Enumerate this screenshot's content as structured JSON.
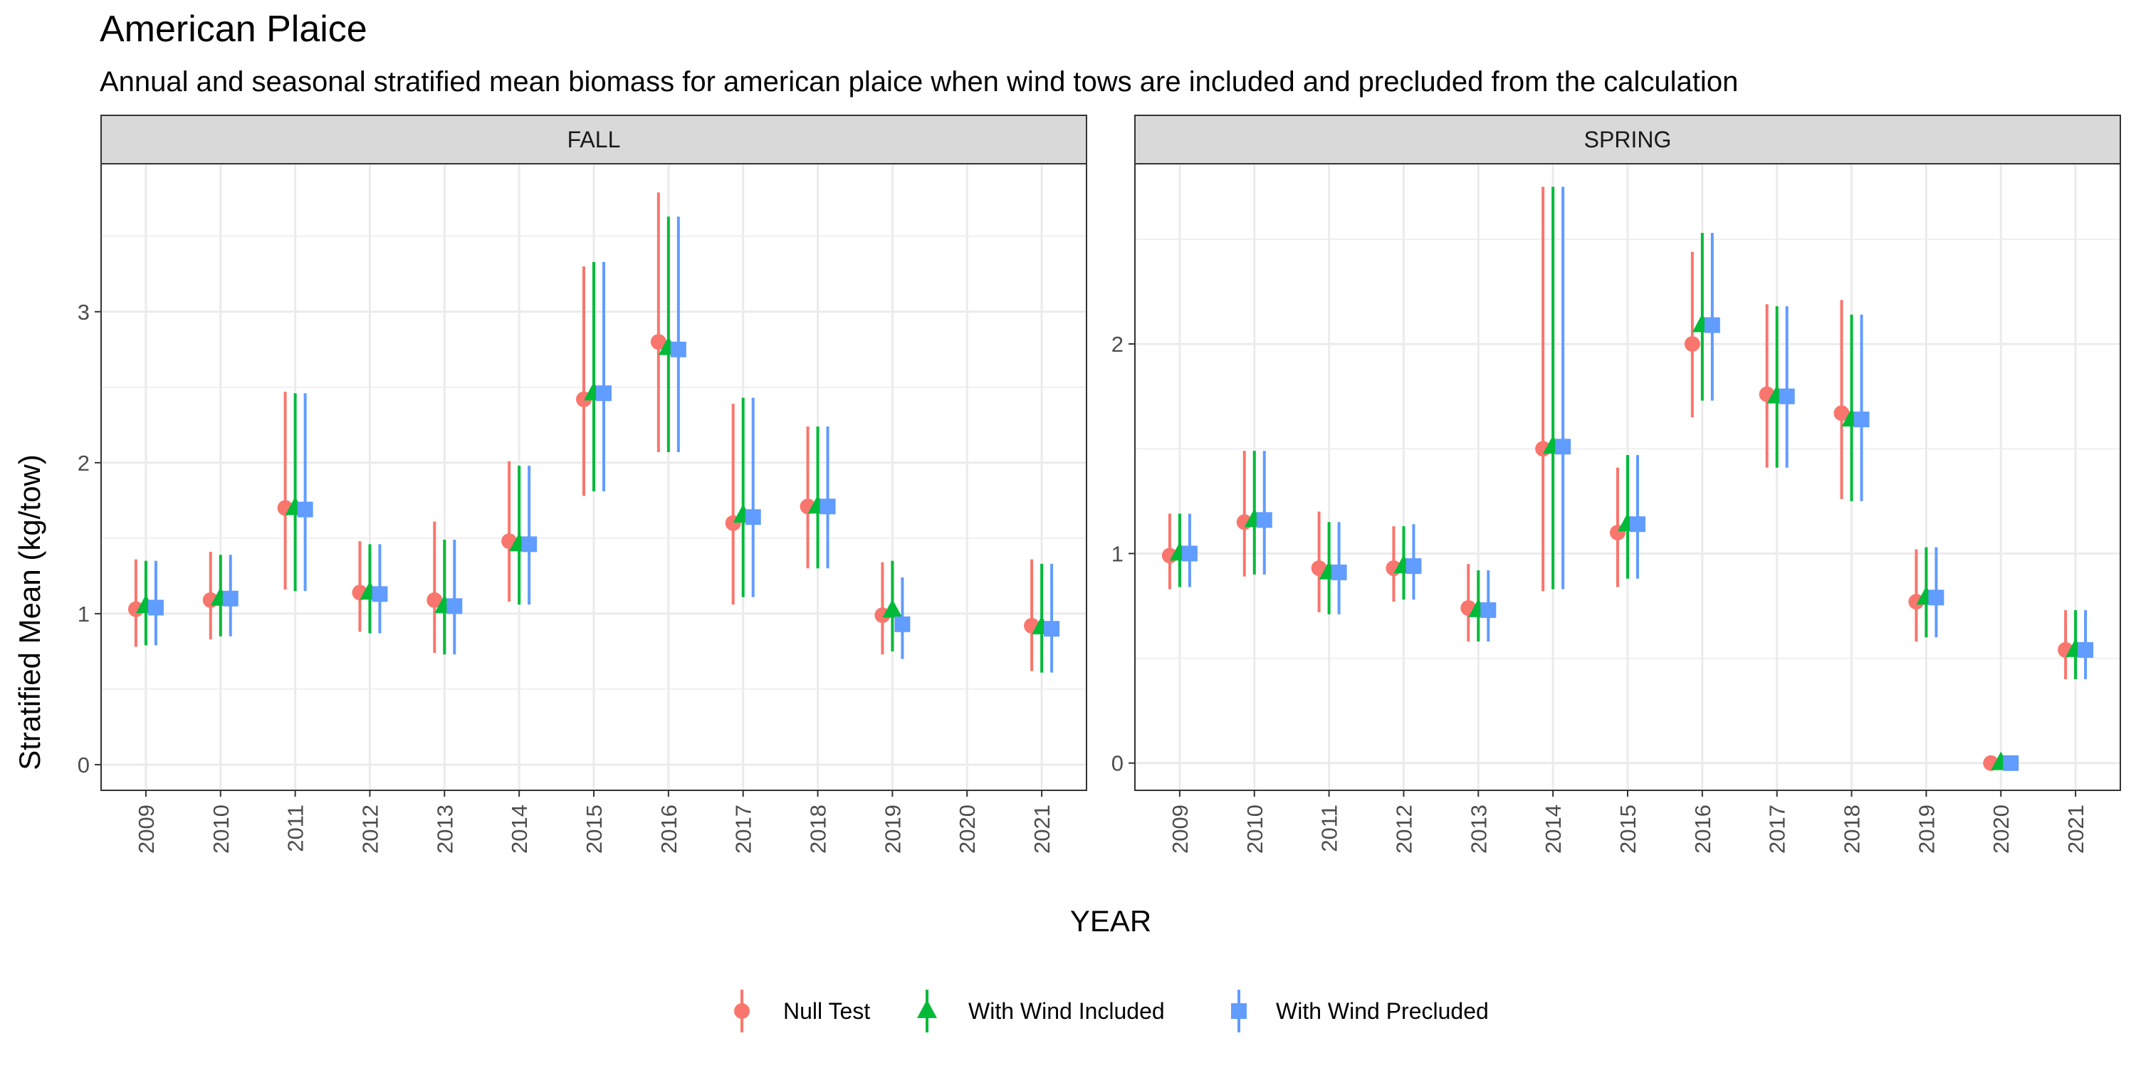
{
  "chart_data": {
    "type": "scatter",
    "title": "American Plaice",
    "subtitle": "Annual and seasonal stratified mean biomass for american plaice when wind tows are included and precluded from the calculation",
    "xlabel": "YEAR",
    "ylabel": "Stratified Mean (kg/tow)",
    "grid": true,
    "legend_position": "bottom",
    "x": [
      "2009",
      "2010",
      "2011",
      "2012",
      "2013",
      "2014",
      "2015",
      "2016",
      "2017",
      "2018",
      "2019",
      "2020",
      "2021"
    ],
    "series": [
      {
        "name": "Null Test",
        "color": "#F8766D",
        "shape": "circle"
      },
      {
        "name": "With Wind Included",
        "color": "#00BA38",
        "shape": "triangle"
      },
      {
        "name": "With Wind Precluded",
        "color": "#619CFF",
        "shape": "square"
      }
    ],
    "panels": [
      {
        "label": "FALL",
        "ylim": [
          -0.17,
          3.98
        ],
        "yticks": [
          0,
          1,
          2,
          3
        ],
        "data": [
          [
            [
              1.03,
              0.78,
              1.36
            ],
            [
              1.05,
              0.79,
              1.35
            ],
            [
              1.04,
              0.79,
              1.35
            ]
          ],
          [
            [
              1.09,
              0.83,
              1.41
            ],
            [
              1.1,
              0.85,
              1.39
            ],
            [
              1.1,
              0.85,
              1.39
            ]
          ],
          [
            [
              1.7,
              1.16,
              2.47
            ],
            [
              1.7,
              1.15,
              2.46
            ],
            [
              1.69,
              1.15,
              2.46
            ]
          ],
          [
            [
              1.14,
              0.88,
              1.48
            ],
            [
              1.14,
              0.87,
              1.46
            ],
            [
              1.13,
              0.87,
              1.46
            ]
          ],
          [
            [
              1.09,
              0.74,
              1.61
            ],
            [
              1.05,
              0.73,
              1.49
            ],
            [
              1.05,
              0.73,
              1.49
            ]
          ],
          [
            [
              1.48,
              1.08,
              2.01
            ],
            [
              1.46,
              1.06,
              1.98
            ],
            [
              1.46,
              1.06,
              1.98
            ]
          ],
          [
            [
              2.42,
              1.78,
              3.3
            ],
            [
              2.46,
              1.81,
              3.33
            ],
            [
              2.46,
              1.81,
              3.33
            ]
          ],
          [
            [
              2.8,
              2.07,
              3.79
            ],
            [
              2.76,
              2.07,
              3.63
            ],
            [
              2.75,
              2.07,
              3.63
            ]
          ],
          [
            [
              1.6,
              1.06,
              2.39
            ],
            [
              1.65,
              1.11,
              2.43
            ],
            [
              1.64,
              1.11,
              2.43
            ]
          ],
          [
            [
              1.71,
              1.3,
              2.24
            ],
            [
              1.71,
              1.3,
              2.24
            ],
            [
              1.71,
              1.3,
              2.24
            ]
          ],
          [
            [
              0.99,
              0.73,
              1.34
            ],
            [
              1.02,
              0.75,
              1.35
            ],
            [
              0.93,
              0.7,
              1.24
            ]
          ],
          [
            null,
            null,
            null
          ],
          [
            [
              0.92,
              0.62,
              1.36
            ],
            [
              0.91,
              0.61,
              1.33
            ],
            [
              0.9,
              0.61,
              1.33
            ]
          ]
        ]
      },
      {
        "label": "SPRING",
        "ylim": [
          -0.13,
          2.86
        ],
        "yticks": [
          0,
          1,
          2
        ],
        "data": [
          [
            [
              0.99,
              0.83,
              1.19
            ],
            [
              1.0,
              0.84,
              1.19
            ],
            [
              1.0,
              0.84,
              1.19
            ]
          ],
          [
            [
              1.15,
              0.89,
              1.49
            ],
            [
              1.16,
              0.9,
              1.49
            ],
            [
              1.16,
              0.9,
              1.49
            ]
          ],
          [
            [
              0.93,
              0.72,
              1.2
            ],
            [
              0.91,
              0.71,
              1.15
            ],
            [
              0.91,
              0.71,
              1.15
            ]
          ],
          [
            [
              0.93,
              0.77,
              1.13
            ],
            [
              0.94,
              0.78,
              1.13
            ],
            [
              0.94,
              0.78,
              1.14
            ]
          ],
          [
            [
              0.74,
              0.58,
              0.95
            ],
            [
              0.73,
              0.58,
              0.92
            ],
            [
              0.73,
              0.58,
              0.92
            ]
          ],
          [
            [
              1.5,
              0.82,
              2.75
            ],
            [
              1.51,
              0.83,
              2.75
            ],
            [
              1.51,
              0.83,
              2.75
            ]
          ],
          [
            [
              1.1,
              0.84,
              1.41
            ],
            [
              1.14,
              0.88,
              1.47
            ],
            [
              1.14,
              0.88,
              1.47
            ]
          ],
          [
            [
              2.0,
              1.65,
              2.44
            ],
            [
              2.09,
              1.73,
              2.53
            ],
            [
              2.09,
              1.73,
              2.53
            ]
          ],
          [
            [
              1.76,
              1.41,
              2.19
            ],
            [
              1.75,
              1.41,
              2.18
            ],
            [
              1.75,
              1.41,
              2.18
            ]
          ],
          [
            [
              1.67,
              1.26,
              2.21
            ],
            [
              1.64,
              1.25,
              2.14
            ],
            [
              1.64,
              1.25,
              2.14
            ]
          ],
          [
            [
              0.77,
              0.58,
              1.02
            ],
            [
              0.79,
              0.6,
              1.03
            ],
            [
              0.79,
              0.6,
              1.03
            ]
          ],
          [
            [
              0.0,
              0.0,
              0.0
            ],
            [
              0.0,
              0.0,
              0.0
            ],
            [
              0.0,
              0.0,
              0.0
            ]
          ],
          [
            [
              0.54,
              0.4,
              0.73
            ],
            [
              0.54,
              0.4,
              0.73
            ],
            [
              0.54,
              0.4,
              0.73
            ]
          ]
        ]
      }
    ]
  }
}
